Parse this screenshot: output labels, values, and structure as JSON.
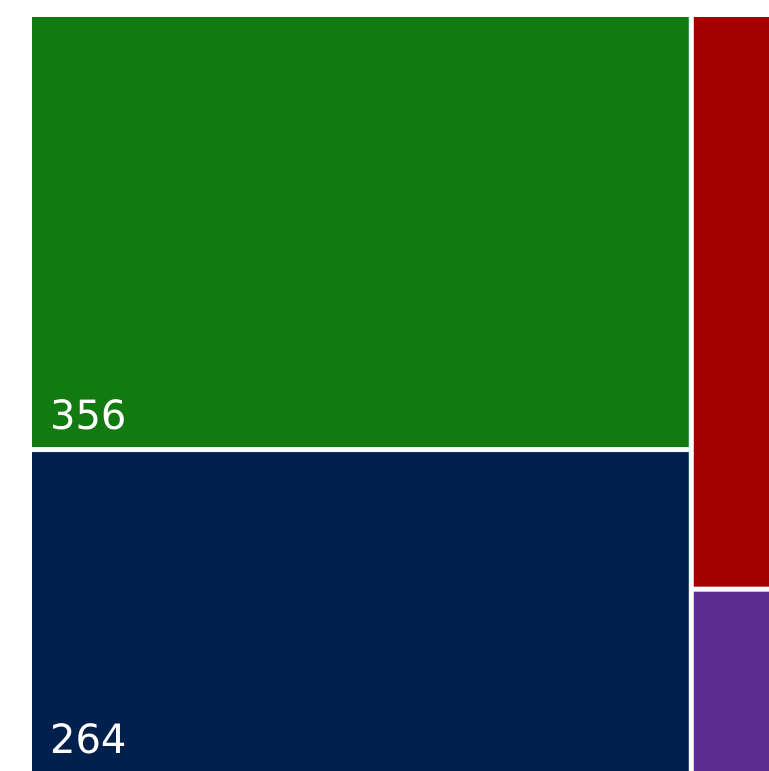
{
  "chart_data": {
    "type": "treemap",
    "values": [
      356,
      264,
      54,
      17
    ],
    "colors": [
      "#127a10",
      "#00204d",
      "#a50000",
      "#5c2d91"
    ]
  }
}
